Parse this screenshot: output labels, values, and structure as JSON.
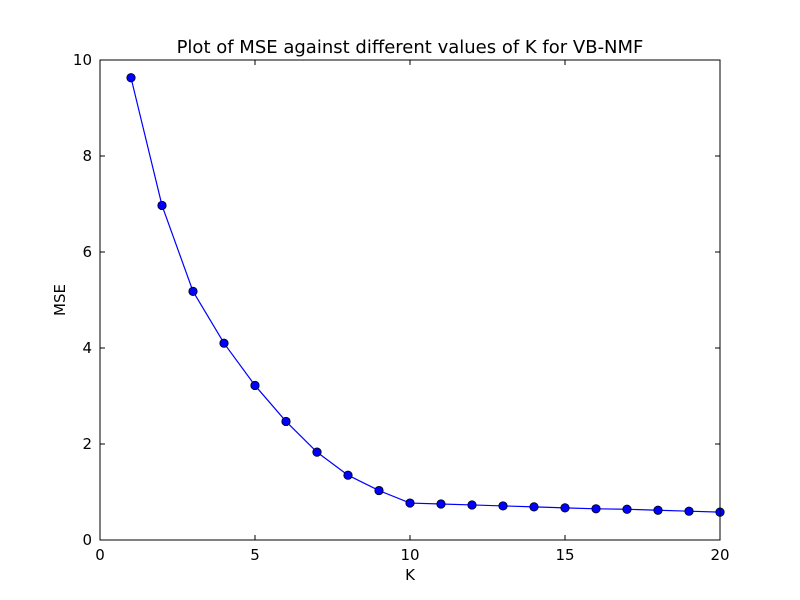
{
  "chart_data": {
    "type": "line",
    "title": "Plot of MSE against different values of K for VB-NMF",
    "xlabel": "K",
    "ylabel": "MSE",
    "xlim": [
      0,
      20
    ],
    "ylim": [
      0,
      10
    ],
    "xticks": [
      0,
      5,
      10,
      15,
      20
    ],
    "yticks": [
      0,
      2,
      4,
      6,
      8,
      10
    ],
    "grid": false,
    "series": [
      {
        "color": "#0000ff",
        "marker": "circle",
        "x": [
          1,
          2,
          3,
          4,
          5,
          6,
          7,
          8,
          9,
          10,
          11,
          12,
          13,
          14,
          15,
          16,
          17,
          18,
          19,
          20
        ],
        "y": [
          9.63,
          6.97,
          5.18,
          4.1,
          3.22,
          2.47,
          1.83,
          1.35,
          1.03,
          0.77,
          0.75,
          0.73,
          0.71,
          0.69,
          0.67,
          0.65,
          0.64,
          0.62,
          0.6,
          0.58
        ]
      }
    ]
  }
}
